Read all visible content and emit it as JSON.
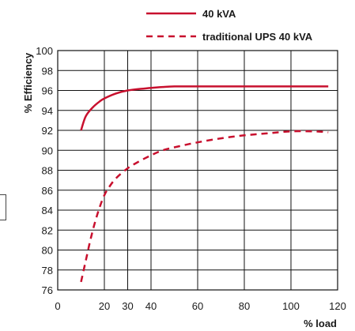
{
  "chart_data": {
    "type": "line",
    "xlabel": "% load",
    "ylabel": "% Efficiency",
    "xlim": [
      0,
      120
    ],
    "ylim": [
      76,
      100
    ],
    "x_ticks": [
      {
        "value": 0,
        "label": "0"
      },
      {
        "value": 20,
        "label": "20"
      },
      {
        "value": 30,
        "label": "30"
      },
      {
        "value": 40,
        "label": "40"
      },
      {
        "value": 60,
        "label": "60"
      },
      {
        "value": 80,
        "label": "80"
      },
      {
        "value": 100,
        "label": "100"
      },
      {
        "value": 120,
        "label": "120"
      }
    ],
    "y_ticks": [
      76,
      78,
      80,
      82,
      84,
      86,
      88,
      90,
      92,
      94,
      96,
      98,
      100
    ],
    "grid": true,
    "legend_position": "top",
    "series": [
      {
        "name": "40 kVA",
        "style": "solid",
        "color": "#c8102e",
        "x": [
          10,
          12,
          15,
          18,
          20,
          25,
          30,
          35,
          40,
          45,
          50,
          60,
          70,
          80,
          90,
          100,
          110,
          116
        ],
        "y": [
          92.0,
          93.4,
          94.3,
          94.9,
          95.2,
          95.7,
          96.0,
          96.15,
          96.25,
          96.35,
          96.4,
          96.4,
          96.4,
          96.4,
          96.4,
          96.4,
          96.4,
          96.4
        ]
      },
      {
        "name": "traditional UPS 40 kVA",
        "style": "dashed",
        "color": "#c8102e",
        "x": [
          10,
          12,
          14,
          16,
          18,
          20,
          22,
          25,
          30,
          35,
          40,
          45,
          50,
          60,
          70,
          80,
          90,
          100,
          110,
          116
        ],
        "y": [
          76.8,
          78.9,
          81.0,
          82.8,
          84.3,
          85.5,
          86.3,
          87.2,
          88.2,
          88.9,
          89.5,
          90.0,
          90.3,
          90.8,
          91.2,
          91.5,
          91.7,
          91.9,
          91.9,
          91.8
        ]
      }
    ]
  }
}
